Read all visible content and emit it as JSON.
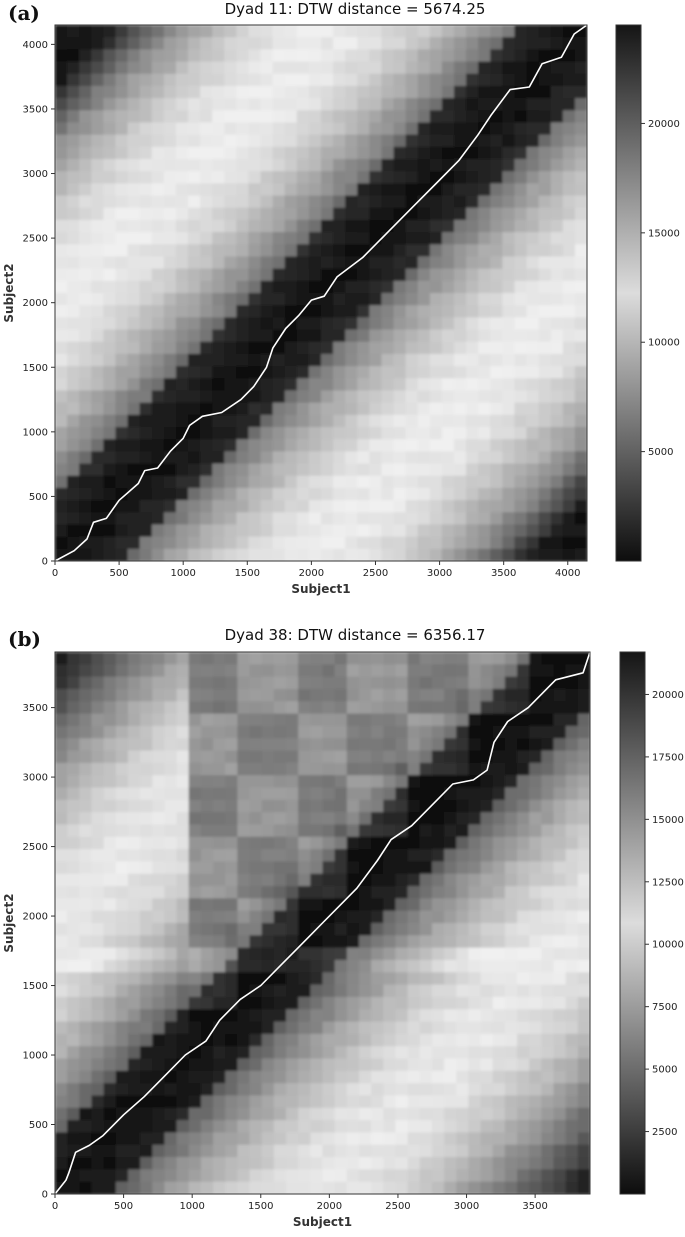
{
  "chart_data": [
    {
      "type": "heatmap",
      "panel_label": "(a)",
      "title": "Dyad 11: DTW distance = 5674.25",
      "xlabel": "Subject1",
      "ylabel": "Subject2",
      "xlim": [
        0,
        4150
      ],
      "ylim": [
        0,
        4150
      ],
      "xticks": [
        0,
        500,
        1000,
        1500,
        2000,
        2500,
        3000,
        3500,
        4000
      ],
      "yticks": [
        0,
        500,
        1000,
        1500,
        2000,
        2500,
        3000,
        3500,
        4000
      ],
      "colorbar": {
        "min": 0,
        "max": 24500,
        "ticks": [
          5000,
          10000,
          15000,
          20000
        ],
        "colormap": "gray_r"
      },
      "warping_path": {
        "color": "#ffffff",
        "points": [
          [
            0,
            0
          ],
          [
            150,
            80
          ],
          [
            250,
            170
          ],
          [
            300,
            300
          ],
          [
            400,
            330
          ],
          [
            500,
            470
          ],
          [
            650,
            600
          ],
          [
            700,
            700
          ],
          [
            800,
            720
          ],
          [
            900,
            850
          ],
          [
            1000,
            950
          ],
          [
            1050,
            1050
          ],
          [
            1150,
            1120
          ],
          [
            1300,
            1150
          ],
          [
            1450,
            1250
          ],
          [
            1550,
            1350
          ],
          [
            1650,
            1500
          ],
          [
            1700,
            1650
          ],
          [
            1800,
            1800
          ],
          [
            1900,
            1900
          ],
          [
            2000,
            2020
          ],
          [
            2100,
            2050
          ],
          [
            2200,
            2200
          ],
          [
            2400,
            2350
          ],
          [
            2600,
            2550
          ],
          [
            2800,
            2750
          ],
          [
            3000,
            2950
          ],
          [
            3150,
            3100
          ],
          [
            3300,
            3300
          ],
          [
            3400,
            3450
          ],
          [
            3550,
            3650
          ],
          [
            3700,
            3670
          ],
          [
            3800,
            3850
          ],
          [
            3950,
            3900
          ],
          [
            4050,
            4080
          ],
          [
            4150,
            4150
          ]
        ]
      }
    },
    {
      "type": "heatmap",
      "panel_label": "(b)",
      "title": "Dyad 38: DTW distance = 6356.17",
      "xlabel": "Subject1",
      "ylabel": "Subject2",
      "xlim": [
        0,
        3900
      ],
      "ylim": [
        0,
        3900
      ],
      "xticks": [
        0,
        500,
        1000,
        1500,
        2000,
        2500,
        3000,
        3500
      ],
      "yticks": [
        0,
        500,
        1000,
        1500,
        2000,
        2500,
        3000,
        3500
      ],
      "colorbar": {
        "min": 0,
        "max": 21700,
        "ticks": [
          2500,
          5000,
          7500,
          10000,
          12500,
          15000,
          17500,
          20000
        ],
        "colormap": "gray_r"
      },
      "warping_path": {
        "color": "#ffffff",
        "points": [
          [
            0,
            0
          ],
          [
            80,
            100
          ],
          [
            100,
            150
          ],
          [
            150,
            300
          ],
          [
            250,
            350
          ],
          [
            350,
            420
          ],
          [
            500,
            570
          ],
          [
            650,
            700
          ],
          [
            800,
            850
          ],
          [
            950,
            1000
          ],
          [
            1100,
            1100
          ],
          [
            1200,
            1250
          ],
          [
            1350,
            1400
          ],
          [
            1500,
            1500
          ],
          [
            1650,
            1650
          ],
          [
            1750,
            1750
          ],
          [
            1850,
            1850
          ],
          [
            1950,
            1950
          ],
          [
            2100,
            2100
          ],
          [
            2200,
            2200
          ],
          [
            2350,
            2400
          ],
          [
            2450,
            2550
          ],
          [
            2600,
            2650
          ],
          [
            2800,
            2850
          ],
          [
            2900,
            2950
          ],
          [
            3050,
            2980
          ],
          [
            3150,
            3050
          ],
          [
            3200,
            3250
          ],
          [
            3300,
            3400
          ],
          [
            3450,
            3500
          ],
          [
            3550,
            3600
          ],
          [
            3650,
            3700
          ],
          [
            3850,
            3750
          ],
          [
            3900,
            3900
          ]
        ]
      }
    }
  ]
}
